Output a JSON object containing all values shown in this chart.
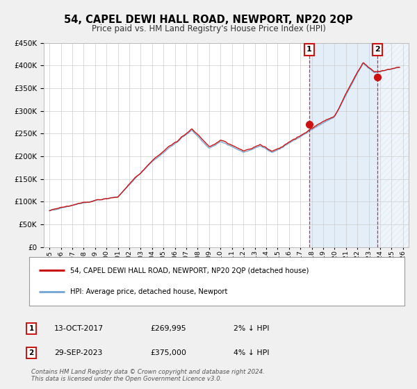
{
  "title": "54, CAPEL DEWI HALL ROAD, NEWPORT, NP20 2QP",
  "subtitle": "Price paid vs. HM Land Registry's House Price Index (HPI)",
  "title_fontsize": 10.5,
  "subtitle_fontsize": 8.5,
  "legend_line1": "54, CAPEL DEWI HALL ROAD, NEWPORT, NP20 2QP (detached house)",
  "legend_line2": "HPI: Average price, detached house, Newport",
  "annotation1_date": "13-OCT-2017",
  "annotation1_price": "£269,995",
  "annotation1_hpi": "2% ↓ HPI",
  "annotation2_date": "29-SEP-2023",
  "annotation2_price": "£375,000",
  "annotation2_hpi": "4% ↓ HPI",
  "copyright": "Contains HM Land Registry data © Crown copyright and database right 2024.\nThis data is licensed under the Open Government Licence v3.0.",
  "hpi_color": "#7aaad4",
  "price_color": "#cc1111",
  "marker_color": "#cc1111",
  "vline_color": "#cc1111",
  "background_color": "#f0f0f0",
  "plot_bg_color": "#ffffff",
  "grid_color": "#cccccc",
  "ylim": [
    0,
    450000
  ],
  "yticks": [
    0,
    50000,
    100000,
    150000,
    200000,
    250000,
    300000,
    350000,
    400000,
    450000
  ],
  "xlim_start": 1994.5,
  "xlim_end": 2026.5,
  "xticks": [
    1995,
    1996,
    1997,
    1998,
    1999,
    2000,
    2001,
    2002,
    2003,
    2004,
    2005,
    2006,
    2007,
    2008,
    2009,
    2010,
    2011,
    2012,
    2013,
    2014,
    2015,
    2016,
    2017,
    2018,
    2019,
    2020,
    2021,
    2022,
    2023,
    2024,
    2025,
    2026
  ],
  "point1_x": 2017.78,
  "point1_y": 269995,
  "point2_x": 2023.74,
  "point2_y": 375000,
  "shade1_start": 2017.78,
  "shade1_end": 2023.74,
  "shade2_start": 2023.74,
  "shade2_end": 2026.5
}
